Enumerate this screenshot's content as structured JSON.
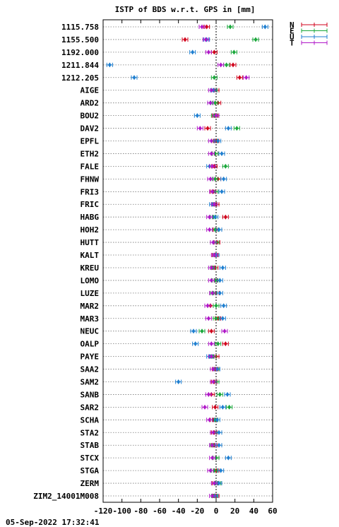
{
  "footer_timestamp": "05-Sep-2022 17:32:41",
  "chart_data": {
    "type": "scatter",
    "title": "ISTP of BDS w.r.t. GPS in [mm]",
    "xlim": [
      -120,
      60
    ],
    "xticks": [
      -120,
      -100,
      -80,
      -60,
      -40,
      -20,
      0,
      20,
      40,
      60
    ],
    "grid": true,
    "legend_position": "top-right",
    "series_order": [
      "N",
      "E",
      "U",
      "T"
    ],
    "colors": {
      "N": "#d0021b",
      "E": "#1aa83b",
      "U": "#1f7fd0",
      "T": "#b018c8"
    },
    "rows": [
      {
        "label": "1115.758",
        "N": -10,
        "E": 15,
        "U": 52,
        "T": -15
      },
      {
        "label": "1155.500",
        "N": -33,
        "E": 42,
        "U": -10,
        "T": -11
      },
      {
        "label": "1192.000",
        "N": -2,
        "E": 19,
        "U": -25,
        "T": -8
      },
      {
        "label": "1211.844",
        "N": 18,
        "E": 11,
        "U": -113,
        "T": 5
      },
      {
        "label": "1212.205",
        "N": 25,
        "E": -2,
        "U": -87,
        "T": 32
      },
      {
        "label": "AIGE",
        "N": 0,
        "E": -2,
        "U": -3,
        "T": -5
      },
      {
        "label": "ARD2",
        "N": 2,
        "E": -1,
        "U": -6,
        "T": -6
      },
      {
        "label": "BOU2",
        "N": -1,
        "E": -2,
        "U": -20,
        "T": 0
      },
      {
        "label": "DAV2",
        "N": -9,
        "E": 22,
        "U": 13,
        "T": -17
      },
      {
        "label": "EPFL",
        "N": 0,
        "E": -2,
        "U": 2,
        "T": -5
      },
      {
        "label": "ETH2",
        "N": -1,
        "E": -1,
        "U": 6,
        "T": -5
      },
      {
        "label": "FALE",
        "N": -2,
        "E": 10,
        "U": -7,
        "T": -4
      },
      {
        "label": "FHNW",
        "N": 2,
        "E": -1,
        "U": 8,
        "T": -6
      },
      {
        "label": "FRI3",
        "N": -3,
        "E": -1,
        "U": 6,
        "T": -4
      },
      {
        "label": "FRIC",
        "N": 0,
        "E": -2,
        "U": -4,
        "T": -2
      },
      {
        "label": "HABG",
        "N": 10,
        "E": -3,
        "U": -1,
        "T": -7
      },
      {
        "label": "HOH2",
        "N": 0,
        "E": -1,
        "U": 3,
        "T": -7
      },
      {
        "label": "HUTT",
        "N": 1,
        "E": 0,
        "U": -3,
        "T": -3
      },
      {
        "label": "KALT",
        "N": -1,
        "E": 0,
        "U": 0,
        "T": -2
      },
      {
        "label": "KREU",
        "N": -1,
        "E": -3,
        "U": 7,
        "T": -5
      },
      {
        "label": "LOMO",
        "N": 1,
        "E": -1,
        "U": 4,
        "T": -5
      },
      {
        "label": "LUZE",
        "N": 0,
        "E": -3,
        "U": 4,
        "T": -4
      },
      {
        "label": "MAR2",
        "N": -6,
        "E": 0,
        "U": 8,
        "T": -9
      },
      {
        "label": "MAR3",
        "N": 2,
        "E": 0,
        "U": 7,
        "T": -8
      },
      {
        "label": "NEUC",
        "N": -5,
        "E": -15,
        "U": -24,
        "T": 9
      },
      {
        "label": "OALP",
        "N": 10,
        "E": 2,
        "U": -22,
        "T": -5
      },
      {
        "label": "PAYE",
        "N": 0,
        "E": -3,
        "U": -7,
        "T": -5
      },
      {
        "label": "SAA2",
        "N": -1,
        "E": 0,
        "U": 1,
        "T": -3
      },
      {
        "label": "SAM2",
        "N": -2,
        "E": 0,
        "U": -40,
        "T": -3
      },
      {
        "label": "SANB",
        "N": -5,
        "E": 4,
        "U": 12,
        "T": -8
      },
      {
        "label": "SAR2",
        "N": -1,
        "E": 14,
        "U": 7,
        "T": -12
      },
      {
        "label": "SCHA",
        "N": -3,
        "E": -1,
        "U": 1,
        "T": -7
      },
      {
        "label": "STA2",
        "N": -2,
        "E": 0,
        "U": 3,
        "T": -3
      },
      {
        "label": "STAB",
        "N": -2,
        "E": -3,
        "U": 3,
        "T": -4
      },
      {
        "label": "STCX",
        "N": 0,
        "E": 0,
        "U": 13,
        "T": -4
      },
      {
        "label": "STGA",
        "N": 0,
        "E": -2,
        "U": 5,
        "T": -6
      },
      {
        "label": "ZERM",
        "N": -1,
        "E": 2,
        "U": 3,
        "T": -2
      },
      {
        "label": "ZIM2_14001M008",
        "N": 0,
        "E": -2,
        "U": -1,
        "T": -4
      }
    ]
  }
}
